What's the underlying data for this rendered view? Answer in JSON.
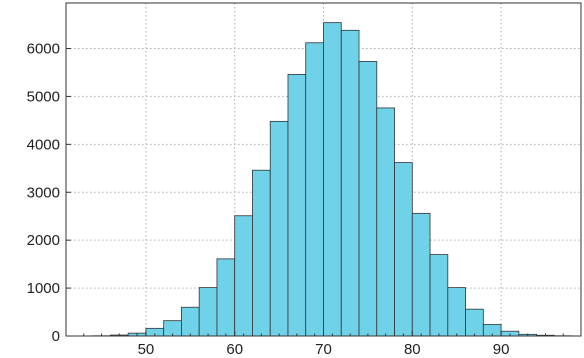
{
  "chart_data": {
    "type": "bar",
    "title": "",
    "xlabel": "",
    "ylabel": "",
    "bin_edges": [
      44,
      46,
      48,
      50,
      52,
      54,
      56,
      58,
      60,
      62,
      64,
      66,
      68,
      70,
      72,
      74,
      76,
      78,
      80,
      82,
      84,
      86,
      88,
      90,
      92,
      94,
      96,
      98
    ],
    "values": [
      5,
      20,
      60,
      160,
      320,
      600,
      1010,
      1610,
      2510,
      3460,
      4480,
      5460,
      6120,
      6540,
      6380,
      5730,
      4760,
      3620,
      2560,
      1700,
      1010,
      560,
      240,
      100,
      35,
      15,
      5
    ],
    "xlim": [
      41,
      99
    ],
    "ylim": [
      0,
      6950
    ],
    "x_ticks": [
      50,
      60,
      70,
      80,
      90
    ],
    "y_ticks": [
      0,
      1000,
      2000,
      3000,
      4000,
      5000,
      6000
    ],
    "x_tick_labels": [
      "50",
      "60",
      "70",
      "80",
      "90"
    ],
    "y_tick_labels": [
      "0",
      "1000",
      "2000",
      "3000",
      "4000",
      "5000",
      "6000"
    ],
    "grid": true,
    "bar_color": "#6fd2e8",
    "edge_color": "#333333",
    "grid_color": "#b0b0b0"
  }
}
